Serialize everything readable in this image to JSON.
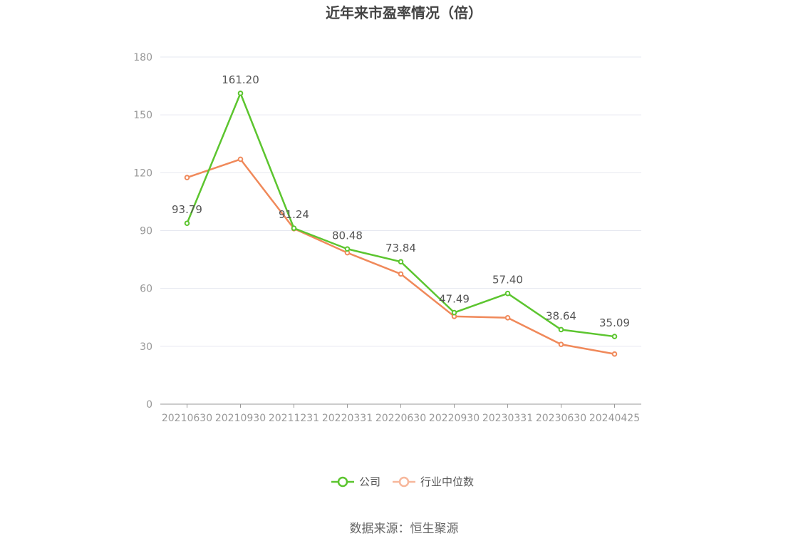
{
  "chart_data": {
    "type": "line",
    "title": "近年来市盈率情况（倍）",
    "categories": [
      "20210630",
      "20210930",
      "20211231",
      "20220331",
      "20220630",
      "20220930",
      "20230331",
      "20230630",
      "20240425"
    ],
    "series": [
      {
        "name": "公司",
        "color": "#5cc52f",
        "values": [
          93.79,
          161.2,
          91.24,
          80.48,
          73.84,
          47.49,
          57.4,
          38.64,
          35.09
        ],
        "labels": [
          "93.79",
          "161.20",
          "91.24",
          "80.48",
          "73.84",
          "47.49",
          "57.40",
          "38.64",
          "35.09"
        ]
      },
      {
        "name": "行业中位数",
        "color": "#f0895a",
        "values": [
          117.5,
          127.0,
          91.0,
          78.5,
          67.5,
          45.5,
          44.8,
          31.0,
          26.0
        ]
      }
    ],
    "ylim": [
      0,
      180
    ],
    "yticks": [
      "0",
      "30",
      "60",
      "90",
      "120",
      "150",
      "180"
    ],
    "xlabel": "",
    "ylabel": "",
    "grid": true,
    "legend_position": "bottom"
  },
  "source_text": "数据来源：恒生聚源"
}
